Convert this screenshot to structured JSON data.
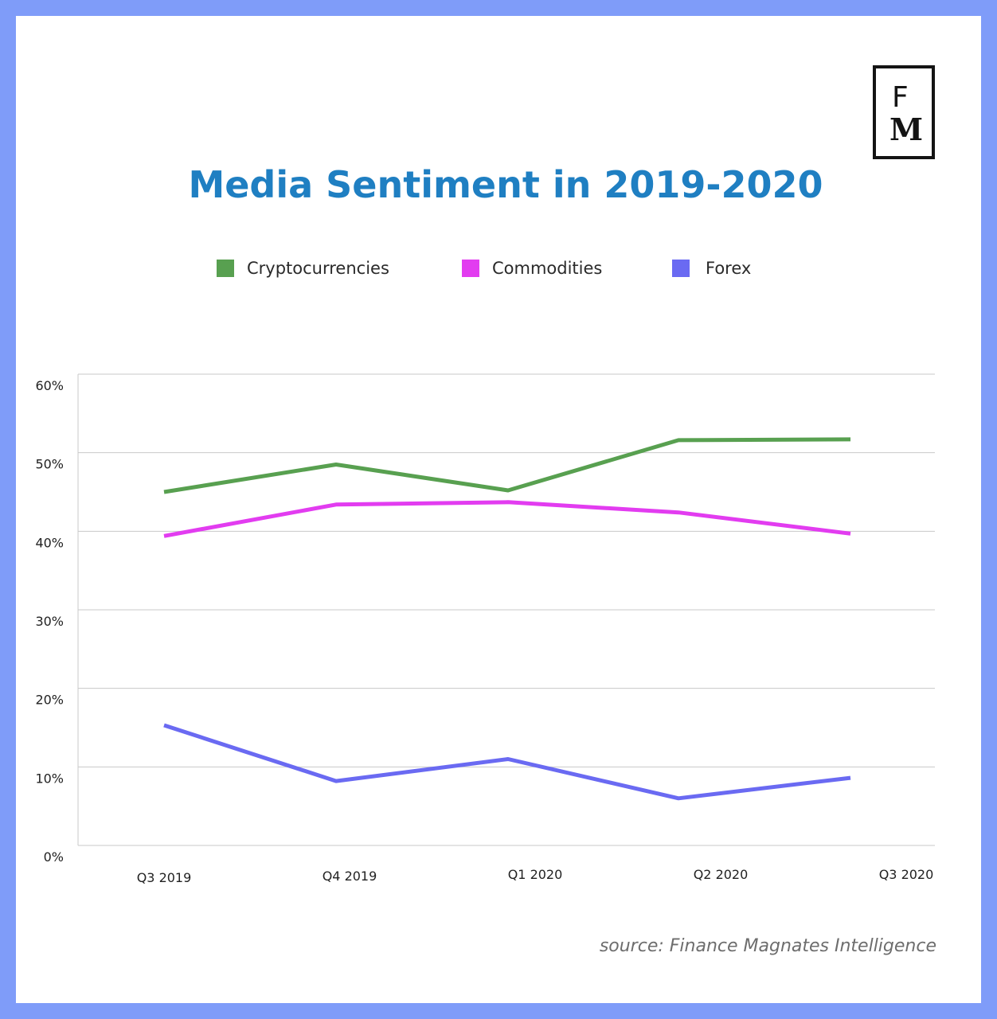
{
  "brand": {
    "logo_top": "F",
    "logo_bottom": "M",
    "logo_color": "#141414"
  },
  "chart_data": {
    "type": "line",
    "title": "Media Sentiment in 2019-2020",
    "categories": [
      "Q3 2019",
      "Q4 2019",
      "Q1 2020",
      "Q2 2020",
      "Q3 2020"
    ],
    "ylim": [
      0,
      60
    ],
    "yticks": [
      "0%",
      "10%",
      "20%",
      "30%",
      "40%",
      "50%",
      "60%"
    ],
    "ytick_values": [
      0,
      10,
      20,
      30,
      40,
      50,
      60
    ],
    "grid": true,
    "legend_position": "top",
    "series": [
      {
        "name": "Cryptocurrencies",
        "color": "#58a050",
        "values": [
          45.0,
          48.5,
          45.2,
          51.6,
          51.7
        ]
      },
      {
        "name": "Commodities",
        "color": "#e23cf0",
        "values": [
          39.4,
          43.4,
          43.7,
          42.4,
          39.7
        ]
      },
      {
        "name": "Forex",
        "color": "#6a6af2",
        "values": [
          15.3,
          8.2,
          11.0,
          6.0,
          8.6
        ]
      }
    ],
    "source": "source: Finance Magnates Intelligence"
  },
  "colors": {
    "frame": "#7f9cf9",
    "title": "#1f7fc2",
    "grid": "#c8c8c8"
  }
}
